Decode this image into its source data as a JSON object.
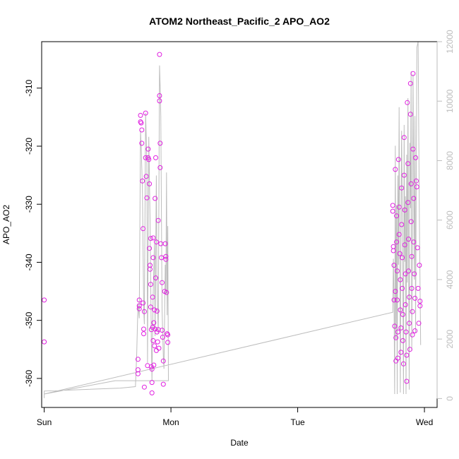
{
  "chart_data": {
    "type": "scatter",
    "title": "ATOM2 Northeast_Pacific_2 APO_AO2",
    "xlabel": "Date",
    "ylabel": "APO_AO2",
    "xlim": [
      -0.02,
      3.1
    ],
    "x_ticks": [
      {
        "x": 0,
        "label": "Sun"
      },
      {
        "x": 1,
        "label": "Mon"
      },
      {
        "x": 2,
        "label": "Tue"
      },
      {
        "x": 3,
        "label": "Wed"
      }
    ],
    "ylim": [
      -365,
      -302
    ],
    "y_ticks": [
      -360,
      -350,
      -340,
      -330,
      -320,
      -310
    ],
    "y_tick_labels": [
      "-360",
      "-350",
      "-340",
      "-330",
      "-320",
      "-310"
    ],
    "y2_lim": [
      -300,
      12000
    ],
    "y2_ticks": [
      0,
      2000,
      4000,
      6000,
      8000,
      10000,
      12000
    ],
    "y2_tick_labels": [
      "0",
      "2000",
      "4000",
      "6000",
      "8000",
      "10000",
      "12000"
    ],
    "colors": {
      "points": "#e020e0",
      "line": "#bdbdbd",
      "axis": "#000000",
      "right_axis": "#bdbdbd"
    },
    "series": [
      {
        "type": "scatter",
        "axis": "left",
        "points": [
          [
            0.0,
            -346.5
          ],
          [
            0.0,
            -353.7
          ],
          [
            0.74,
            -356.7
          ],
          [
            0.74,
            -358.5
          ],
          [
            0.74,
            -359.2
          ],
          [
            0.75,
            -347.5
          ],
          [
            0.75,
            -346.5
          ],
          [
            0.75,
            -348.0
          ],
          [
            0.76,
            -314.7
          ],
          [
            0.76,
            -315.8
          ],
          [
            0.765,
            -316.0
          ],
          [
            0.77,
            -317.2
          ],
          [
            0.77,
            -319.5
          ],
          [
            0.775,
            -326.0
          ],
          [
            0.78,
            -334.2
          ],
          [
            0.78,
            -347.0
          ],
          [
            0.785,
            -351.5
          ],
          [
            0.785,
            -352.3
          ],
          [
            0.79,
            -348.5
          ],
          [
            0.79,
            -361.5
          ],
          [
            0.8,
            -314.3
          ],
          [
            0.8,
            -322.0
          ],
          [
            0.805,
            -325.2
          ],
          [
            0.81,
            -328.9
          ],
          [
            0.815,
            -357.8
          ],
          [
            0.82,
            -320.5
          ],
          [
            0.82,
            -322.0
          ],
          [
            0.825,
            -322.3
          ],
          [
            0.83,
            -326.5
          ],
          [
            0.83,
            -337.6
          ],
          [
            0.835,
            -340.5
          ],
          [
            0.835,
            -341.2
          ],
          [
            0.84,
            -335.9
          ],
          [
            0.84,
            -343.8
          ],
          [
            0.84,
            -347.7
          ],
          [
            0.845,
            -351.6
          ],
          [
            0.845,
            -358.0
          ],
          [
            0.85,
            -358.4
          ],
          [
            0.85,
            -362.5
          ],
          [
            0.85,
            -360.7
          ],
          [
            0.855,
            -346.0
          ],
          [
            0.855,
            -351.2
          ],
          [
            0.86,
            -335.8
          ],
          [
            0.86,
            -339.2
          ],
          [
            0.86,
            -353.5
          ],
          [
            0.865,
            -357.7
          ],
          [
            0.865,
            -350.4
          ],
          [
            0.87,
            -348.2
          ],
          [
            0.87,
            -354.4
          ],
          [
            0.875,
            -351.5
          ],
          [
            0.875,
            -329.0
          ],
          [
            0.88,
            -322.0
          ],
          [
            0.88,
            -342.7
          ],
          [
            0.885,
            -355.2
          ],
          [
            0.885,
            -336.5
          ],
          [
            0.89,
            -348.4
          ],
          [
            0.89,
            -352.0
          ],
          [
            0.895,
            -353.7
          ],
          [
            0.9,
            -332.8
          ],
          [
            0.9,
            -351.6
          ],
          [
            0.905,
            -354.8
          ],
          [
            0.91,
            -304.2
          ],
          [
            0.91,
            -311.3
          ],
          [
            0.91,
            -312.2
          ],
          [
            0.915,
            -319.5
          ],
          [
            0.915,
            -323.7
          ],
          [
            0.92,
            -336.8
          ],
          [
            0.925,
            -339.2
          ],
          [
            0.93,
            -343.5
          ],
          [
            0.93,
            -351.7
          ],
          [
            0.935,
            -352.9
          ],
          [
            0.94,
            -357.0
          ],
          [
            0.94,
            -361.0
          ],
          [
            0.95,
            -345.0
          ],
          [
            0.955,
            -336.8
          ],
          [
            0.96,
            -339.0
          ],
          [
            0.96,
            -339.5
          ],
          [
            0.965,
            -345.2
          ],
          [
            0.97,
            -352.3
          ],
          [
            0.975,
            -352.5
          ],
          [
            0.975,
            -353.8
          ],
          [
            2.75,
            -330.2
          ],
          [
            2.75,
            -331.2
          ],
          [
            2.755,
            -337.3
          ],
          [
            2.755,
            -338.0
          ],
          [
            2.76,
            -340.5
          ],
          [
            2.76,
            -346.5
          ],
          [
            2.765,
            -351.0
          ],
          [
            2.77,
            -324.0
          ],
          [
            2.77,
            -345.0
          ],
          [
            2.775,
            -353.0
          ],
          [
            2.775,
            -357.0
          ],
          [
            2.78,
            -332.0
          ],
          [
            2.78,
            -336.5
          ],
          [
            2.785,
            -341.5
          ],
          [
            2.785,
            -346.5
          ],
          [
            2.79,
            -352.0
          ],
          [
            2.79,
            -356.5
          ],
          [
            2.795,
            -322.3
          ],
          [
            2.8,
            -330.5
          ],
          [
            2.8,
            -335.2
          ],
          [
            2.805,
            -338.5
          ],
          [
            2.81,
            -343.0
          ],
          [
            2.81,
            -348.2
          ],
          [
            2.815,
            -351.3
          ],
          [
            2.815,
            -355.5
          ],
          [
            2.82,
            -327.2
          ],
          [
            2.82,
            -333.5
          ],
          [
            2.825,
            -339.2
          ],
          [
            2.825,
            -344.5
          ],
          [
            2.83,
            -349.0
          ],
          [
            2.83,
            -353.5
          ],
          [
            2.835,
            -357.5
          ],
          [
            2.84,
            -318.5
          ],
          [
            2.84,
            -325.0
          ],
          [
            2.845,
            -331.0
          ],
          [
            2.845,
            -337.0
          ],
          [
            2.85,
            -342.0
          ],
          [
            2.85,
            -347.3
          ],
          [
            2.855,
            -352.0
          ],
          [
            2.86,
            -356.0
          ],
          [
            2.86,
            -360.5
          ],
          [
            2.865,
            -312.5
          ],
          [
            2.87,
            -323.0
          ],
          [
            2.87,
            -329.7
          ],
          [
            2.875,
            -336.0
          ],
          [
            2.875,
            -341.5
          ],
          [
            2.88,
            -346.0
          ],
          [
            2.88,
            -350.5
          ],
          [
            2.885,
            -355.0
          ],
          [
            2.89,
            -309.2
          ],
          [
            2.89,
            -314.5
          ],
          [
            2.895,
            -326.5
          ],
          [
            2.895,
            -333.0
          ],
          [
            2.9,
            -339.0
          ],
          [
            2.9,
            -344.5
          ],
          [
            2.905,
            -348.5
          ],
          [
            2.905,
            -352.5
          ],
          [
            2.91,
            -307.5
          ],
          [
            2.91,
            -320.5
          ],
          [
            2.915,
            -329.0
          ],
          [
            2.915,
            -336.5
          ],
          [
            2.92,
            -342.0
          ],
          [
            2.925,
            -346.2
          ],
          [
            2.925,
            -351.8
          ],
          [
            2.93,
            -322.0
          ],
          [
            2.935,
            -326.0
          ],
          [
            2.94,
            -327.0
          ],
          [
            2.945,
            -337.5
          ],
          [
            2.95,
            -344.5
          ],
          [
            2.955,
            -350.5
          ],
          [
            2.96,
            -340.5
          ],
          [
            2.965,
            -346.7
          ],
          [
            2.965,
            -347.5
          ]
        ]
      },
      {
        "type": "line",
        "axis": "right",
        "points": [
          [
            0.0,
            10
          ],
          [
            0.0,
            250
          ],
          [
            0.6,
            350
          ],
          [
            0.72,
            400
          ],
          [
            0.73,
            1500
          ],
          [
            0.74,
            3200
          ],
          [
            0.75,
            2700
          ],
          [
            0.76,
            9000
          ],
          [
            0.765,
            8500
          ],
          [
            0.775,
            7000
          ],
          [
            0.785,
            3000
          ],
          [
            0.79,
            2500
          ],
          [
            0.8,
            9600
          ],
          [
            0.81,
            8000
          ],
          [
            0.815,
            1200
          ],
          [
            0.825,
            8800
          ],
          [
            0.835,
            6000
          ],
          [
            0.845,
            2000
          ],
          [
            0.85,
            600
          ],
          [
            0.86,
            3500
          ],
          [
            0.87,
            5200
          ],
          [
            0.875,
            2100
          ],
          [
            0.885,
            7500
          ],
          [
            0.89,
            4000
          ],
          [
            0.9,
            2200
          ],
          [
            0.91,
            11200
          ],
          [
            0.915,
            10500
          ],
          [
            0.92,
            9500
          ],
          [
            0.93,
            3000
          ],
          [
            0.94,
            1400
          ],
          [
            0.945,
            1000
          ],
          [
            0.955,
            4500
          ],
          [
            0.96,
            3500
          ],
          [
            0.965,
            7600
          ],
          [
            0.97,
            2800
          ],
          [
            0.975,
            5800
          ],
          [
            0.98,
            600
          ],
          [
            0.56,
            600
          ],
          [
            0.0,
            150
          ],
          [
            2.75,
            2900
          ],
          [
            2.755,
            4700
          ],
          [
            2.76,
            3300
          ],
          [
            2.765,
            150
          ],
          [
            2.77,
            8500
          ],
          [
            2.775,
            2000
          ],
          [
            2.78,
            6500
          ],
          [
            2.785,
            150
          ],
          [
            2.79,
            7500
          ],
          [
            2.795,
            4500
          ],
          [
            2.8,
            9800
          ],
          [
            2.81,
            200
          ],
          [
            2.815,
            5500
          ],
          [
            2.82,
            9000
          ],
          [
            2.83,
            3800
          ],
          [
            2.835,
            150
          ],
          [
            2.84,
            9200
          ],
          [
            2.845,
            4600
          ],
          [
            2.85,
            6800
          ],
          [
            2.855,
            150
          ],
          [
            2.86,
            8200
          ],
          [
            2.865,
            3900
          ],
          [
            2.87,
            10100
          ],
          [
            2.875,
            5000
          ],
          [
            2.88,
            300
          ],
          [
            2.885,
            8600
          ],
          [
            2.89,
            6400
          ],
          [
            2.895,
            11000
          ],
          [
            2.9,
            1600
          ],
          [
            2.905,
            5600
          ],
          [
            2.91,
            10900
          ],
          [
            2.92,
            4000
          ],
          [
            2.925,
            9500
          ],
          [
            2.93,
            2200
          ],
          [
            2.94,
            11800
          ],
          [
            2.95,
            12000
          ],
          [
            2.96,
            6000
          ],
          [
            2.97,
            1800
          ]
        ]
      }
    ]
  }
}
